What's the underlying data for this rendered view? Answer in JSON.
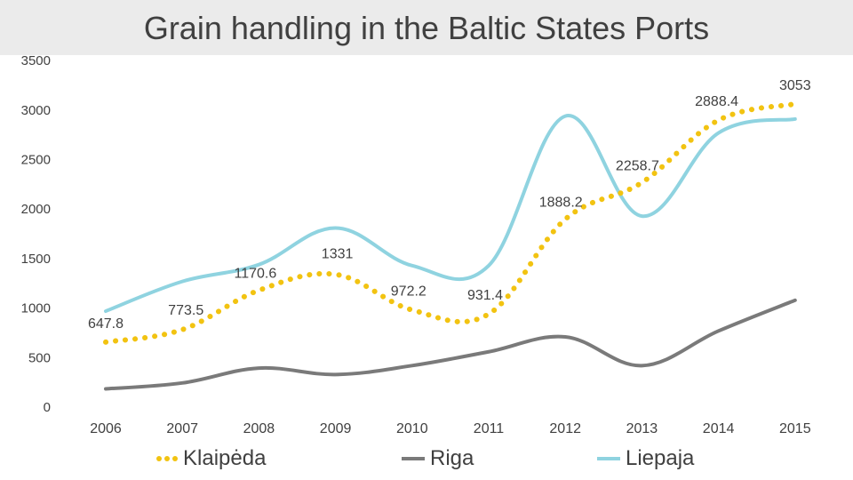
{
  "title": "Grain handling in the Baltic States Ports",
  "chart_data": {
    "type": "line",
    "title": "Grain handling in the Baltic States Ports",
    "categories": [
      "2006",
      "2007",
      "2008",
      "2009",
      "2010",
      "2011",
      "2012",
      "2013",
      "2014",
      "2015"
    ],
    "ylim": [
      0,
      3500
    ],
    "yticks": [
      "0",
      "500",
      "1000",
      "1500",
      "2000",
      "2500",
      "3000",
      "3500"
    ],
    "grid": false,
    "legend_position": "bottom",
    "series": [
      {
        "name": "Klaipėda",
        "color": "#f2c311",
        "style": "dotted",
        "values": [
          647.8,
          773.5,
          1170.6,
          1331,
          972.2,
          931.4,
          1888.2,
          2258.7,
          2888.4,
          3053
        ],
        "labels": [
          "647.8",
          "773.5",
          "1170.6",
          "1331",
          "972.2",
          "931.4",
          "1888.2",
          "2258.7",
          "2888.4",
          "3053"
        ]
      },
      {
        "name": "Riga",
        "color": "#7a7a7a",
        "style": "solid",
        "values": [
          175,
          235,
          385,
          320,
          410,
          550,
          700,
          410,
          760,
          1070
        ]
      },
      {
        "name": "Liepaja",
        "color": "#8fd3e0",
        "style": "solid",
        "values": [
          960,
          1260,
          1430,
          1800,
          1420,
          1420,
          2930,
          1920,
          2760,
          2900
        ]
      }
    ]
  }
}
